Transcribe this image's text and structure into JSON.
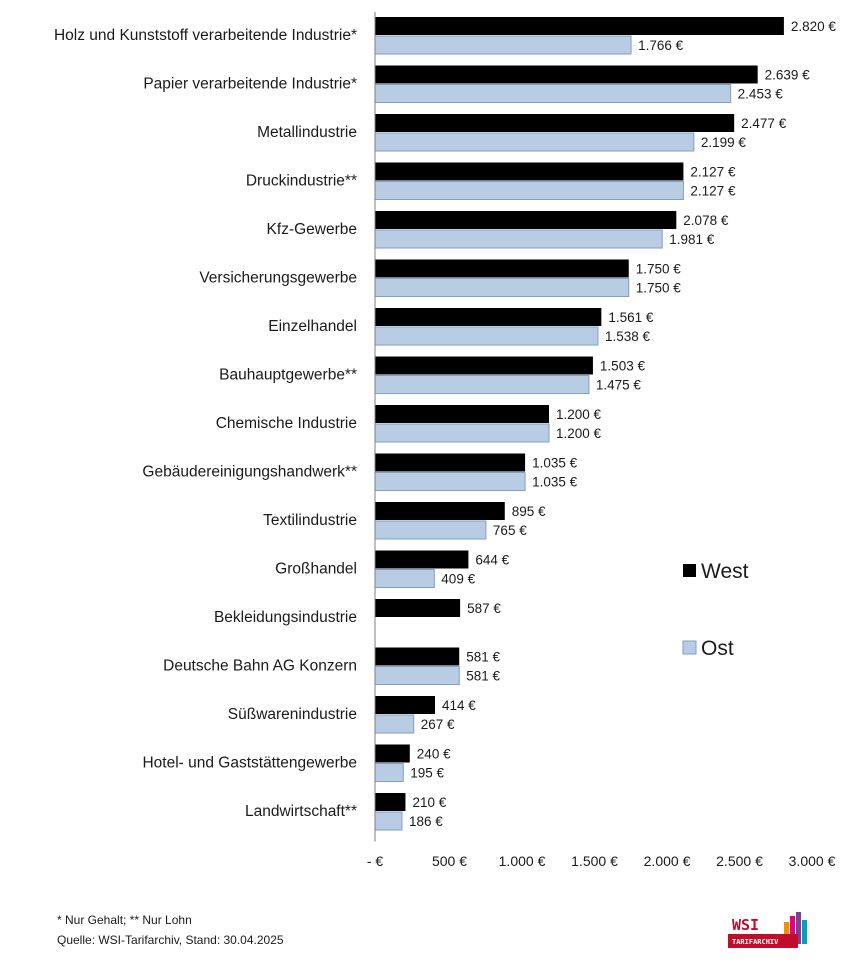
{
  "chart_data": {
    "type": "bar",
    "orientation": "horizontal",
    "categories": [
      "Holz und Kunststoff verarbeitende Industrie*",
      "Papier verarbeitende Industrie*",
      "Metallindustrie",
      "Druckindustrie**",
      "Kfz-Gewerbe",
      "Versicherungsgewerbe",
      "Einzelhandel",
      "Bauhauptgewerbe**",
      "Chemische Industrie",
      "Gebäudereinigungshandwerk**",
      "Textilindustrie",
      "Großhandel",
      "Bekleidungsindustrie",
      "Deutsche Bahn AG Konzern",
      "Süßwarenindustrie",
      "Hotel- und Gaststättengewerbe",
      "Landwirtschaft**"
    ],
    "series": [
      {
        "name": "West",
        "color": "#000000",
        "values": [
          2820,
          2639,
          2477,
          2127,
          2078,
          1750,
          1561,
          1503,
          1200,
          1035,
          895,
          644,
          587,
          581,
          414,
          240,
          210
        ],
        "labels": [
          "2.820 €",
          "2.639 €",
          "2.477 €",
          "2.127 €",
          "2.078 €",
          "1.750 €",
          "1.561 €",
          "1.503 €",
          "1.200 €",
          "1.035 €",
          "895 €",
          "644 €",
          "587 €",
          "581 €",
          "414 €",
          "240 €",
          "210 €"
        ]
      },
      {
        "name": "Ost",
        "color": "#b8cce4",
        "stroke": "#7f9fc4",
        "values": [
          1766,
          2453,
          2199,
          2127,
          1981,
          1750,
          1538,
          1475,
          1200,
          1035,
          765,
          409,
          null,
          581,
          267,
          195,
          186
        ],
        "labels": [
          "1.766 €",
          "2.453 €",
          "2.199 €",
          "2.127 €",
          "1.981 €",
          "1.750 €",
          "1.538 €",
          "1.475 €",
          "1.200 €",
          "1.035 €",
          "765 €",
          "409 €",
          null,
          "581 €",
          "267 €",
          "195 €",
          "186 €"
        ]
      }
    ],
    "xlim": [
      0,
      3000
    ],
    "xticks": [
      0,
      500,
      1000,
      1500,
      2000,
      2500,
      3000
    ],
    "xtick_labels": [
      "-   €",
      "500 €",
      "1.000 €",
      "1.500 €",
      "2.000 €",
      "2.500 €",
      "3.000 €"
    ],
    "grid": false,
    "legend_position": "right"
  },
  "footnotes": {
    "note": "* Nur Gehalt; ** Nur Lohn",
    "source": "Quelle: WSI-Tarifarchiv, Stand: 30.04.2025"
  },
  "logo": {
    "text": "WSI",
    "subtext": "TARIFARCHIV"
  }
}
